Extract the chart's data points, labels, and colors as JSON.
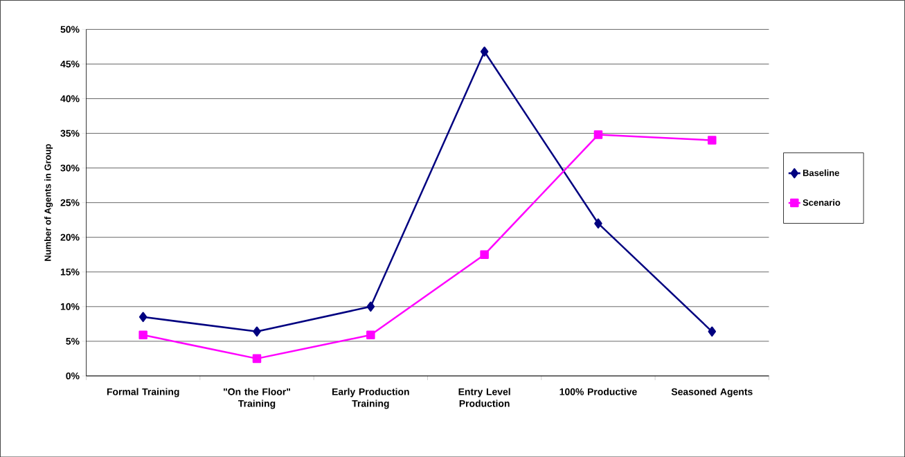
{
  "chart_data": {
    "type": "line",
    "ylabel": "Number of Agents in Group",
    "categories": [
      "Formal Training",
      "\"On the Floor\" Training",
      "Early Production Training",
      "Entry Level Production",
      "100% Productive",
      "Seasoned Agents"
    ],
    "series": [
      {
        "name": "Baseline",
        "color": "#000080",
        "marker": "diamond",
        "values": [
          8.5,
          6.4,
          10,
          46.8,
          22,
          6.4
        ]
      },
      {
        "name": "Scenario",
        "color": "#ff00ff",
        "marker": "square",
        "values": [
          5.9,
          2.5,
          5.9,
          17.5,
          34.8,
          34
        ]
      }
    ],
    "ylim": [
      0,
      50
    ],
    "yticks": [
      {
        "value": 0,
        "label": "0%"
      },
      {
        "value": 5,
        "label": "5%"
      },
      {
        "value": 10,
        "label": "10%"
      },
      {
        "value": 15,
        "label": "15%"
      },
      {
        "value": 20,
        "label": "20%"
      },
      {
        "value": 25,
        "label": "25%"
      },
      {
        "value": 30,
        "label": "30%"
      },
      {
        "value": 35,
        "label": "35%"
      },
      {
        "value": 40,
        "label": "40%"
      },
      {
        "value": 45,
        "label": "45%"
      },
      {
        "value": 50,
        "label": "50%"
      }
    ],
    "grid": "y",
    "legend": "right",
    "line_style": "solid"
  }
}
